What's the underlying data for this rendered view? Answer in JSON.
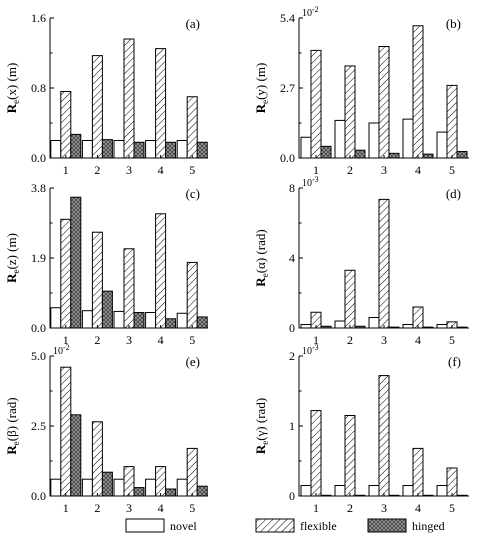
{
  "legend": {
    "items": [
      {
        "label": "novel",
        "pattern": "white"
      },
      {
        "label": "flexible",
        "pattern": "diagonal-hatch"
      },
      {
        "label": "hinged",
        "pattern": "cross-hatch-dark"
      }
    ]
  },
  "colors": {
    "bar_edge": "#000000",
    "novel": "#ffffff",
    "hinged_fill": "#9a9a9a"
  },
  "chart_data": [
    {
      "type": "bar",
      "panel": "(a)",
      "ylabel": "Re(x) (m)",
      "multiplier": "",
      "ylim": [
        0,
        1.6
      ],
      "yticks": [
        "0.0",
        "0.8",
        "1.6"
      ],
      "categories": [
        "1",
        "2",
        "3",
        "4",
        "5"
      ],
      "series": [
        {
          "name": "novel",
          "values": [
            0.2,
            0.2,
            0.2,
            0.2,
            0.2
          ]
        },
        {
          "name": "flexible",
          "values": [
            0.76,
            1.17,
            1.36,
            1.25,
            0.7
          ]
        },
        {
          "name": "hinged",
          "values": [
            0.27,
            0.21,
            0.18,
            0.18,
            0.18
          ]
        }
      ]
    },
    {
      "type": "bar",
      "panel": "(b)",
      "ylabel": "Re(y) (m)",
      "multiplier": "10-2",
      "ylim": [
        0,
        5.4
      ],
      "yticks": [
        "0.0",
        "2.7",
        "5.4"
      ],
      "categories": [
        "1",
        "2",
        "3",
        "4",
        "5"
      ],
      "series": [
        {
          "name": "novel",
          "values": [
            0.8,
            1.45,
            1.35,
            1.5,
            1.0
          ]
        },
        {
          "name": "flexible",
          "values": [
            4.15,
            3.55,
            4.3,
            5.1,
            2.8
          ]
        },
        {
          "name": "hinged",
          "values": [
            0.45,
            0.3,
            0.18,
            0.15,
            0.25
          ]
        }
      ]
    },
    {
      "type": "bar",
      "panel": "(c)",
      "ylabel": "Re(z) (m)",
      "multiplier": "",
      "ylim": [
        0,
        3.8
      ],
      "yticks": [
        "0.0",
        "1.9",
        "3.8"
      ],
      "categories": [
        "1",
        "2",
        "3",
        "4",
        "5"
      ],
      "series": [
        {
          "name": "novel",
          "values": [
            0.55,
            0.47,
            0.45,
            0.42,
            0.4
          ]
        },
        {
          "name": "flexible",
          "values": [
            2.95,
            2.6,
            2.15,
            3.1,
            1.78
          ]
        },
        {
          "name": "hinged",
          "values": [
            3.55,
            1.0,
            0.42,
            0.25,
            0.3
          ]
        }
      ]
    },
    {
      "type": "bar",
      "panel": "(d)",
      "ylabel": "Re(α) (rad)",
      "multiplier": "10-3",
      "ylim": [
        0,
        8
      ],
      "yticks": [
        "0",
        "4",
        "8"
      ],
      "categories": [
        "1",
        "2",
        "3",
        "4",
        "5"
      ],
      "series": [
        {
          "name": "novel",
          "values": [
            0.2,
            0.4,
            0.6,
            0.2,
            0.2
          ]
        },
        {
          "name": "flexible",
          "values": [
            0.9,
            3.3,
            7.35,
            1.2,
            0.35
          ]
        },
        {
          "name": "hinged",
          "values": [
            0.1,
            0.1,
            0.05,
            0.05,
            0.05
          ]
        }
      ]
    },
    {
      "type": "bar",
      "panel": "(e)",
      "ylabel": "Re(β) (rad)",
      "multiplier": "10-2",
      "ylim": [
        0,
        5.0
      ],
      "yticks": [
        "0.0",
        "2.5",
        "5.0"
      ],
      "categories": [
        "1",
        "2",
        "3",
        "4",
        "5"
      ],
      "series": [
        {
          "name": "novel",
          "values": [
            0.6,
            0.6,
            0.6,
            0.6,
            0.6
          ]
        },
        {
          "name": "flexible",
          "values": [
            4.6,
            2.65,
            1.05,
            1.05,
            1.7
          ]
        },
        {
          "name": "hinged",
          "values": [
            2.9,
            0.85,
            0.3,
            0.25,
            0.35
          ]
        }
      ]
    },
    {
      "type": "bar",
      "panel": "(f)",
      "ylabel": "Re(γ) (rad)",
      "multiplier": "10-3",
      "ylim": [
        0,
        2
      ],
      "yticks": [
        "0",
        "1",
        "2"
      ],
      "categories": [
        "1",
        "2",
        "3",
        "4",
        "5"
      ],
      "series": [
        {
          "name": "novel",
          "values": [
            0.15,
            0.15,
            0.15,
            0.15,
            0.15
          ]
        },
        {
          "name": "flexible",
          "values": [
            1.22,
            1.15,
            1.72,
            0.68,
            0.4
          ]
        },
        {
          "name": "hinged",
          "values": [
            0.01,
            0.01,
            0.01,
            0.01,
            0.01
          ]
        }
      ]
    }
  ]
}
